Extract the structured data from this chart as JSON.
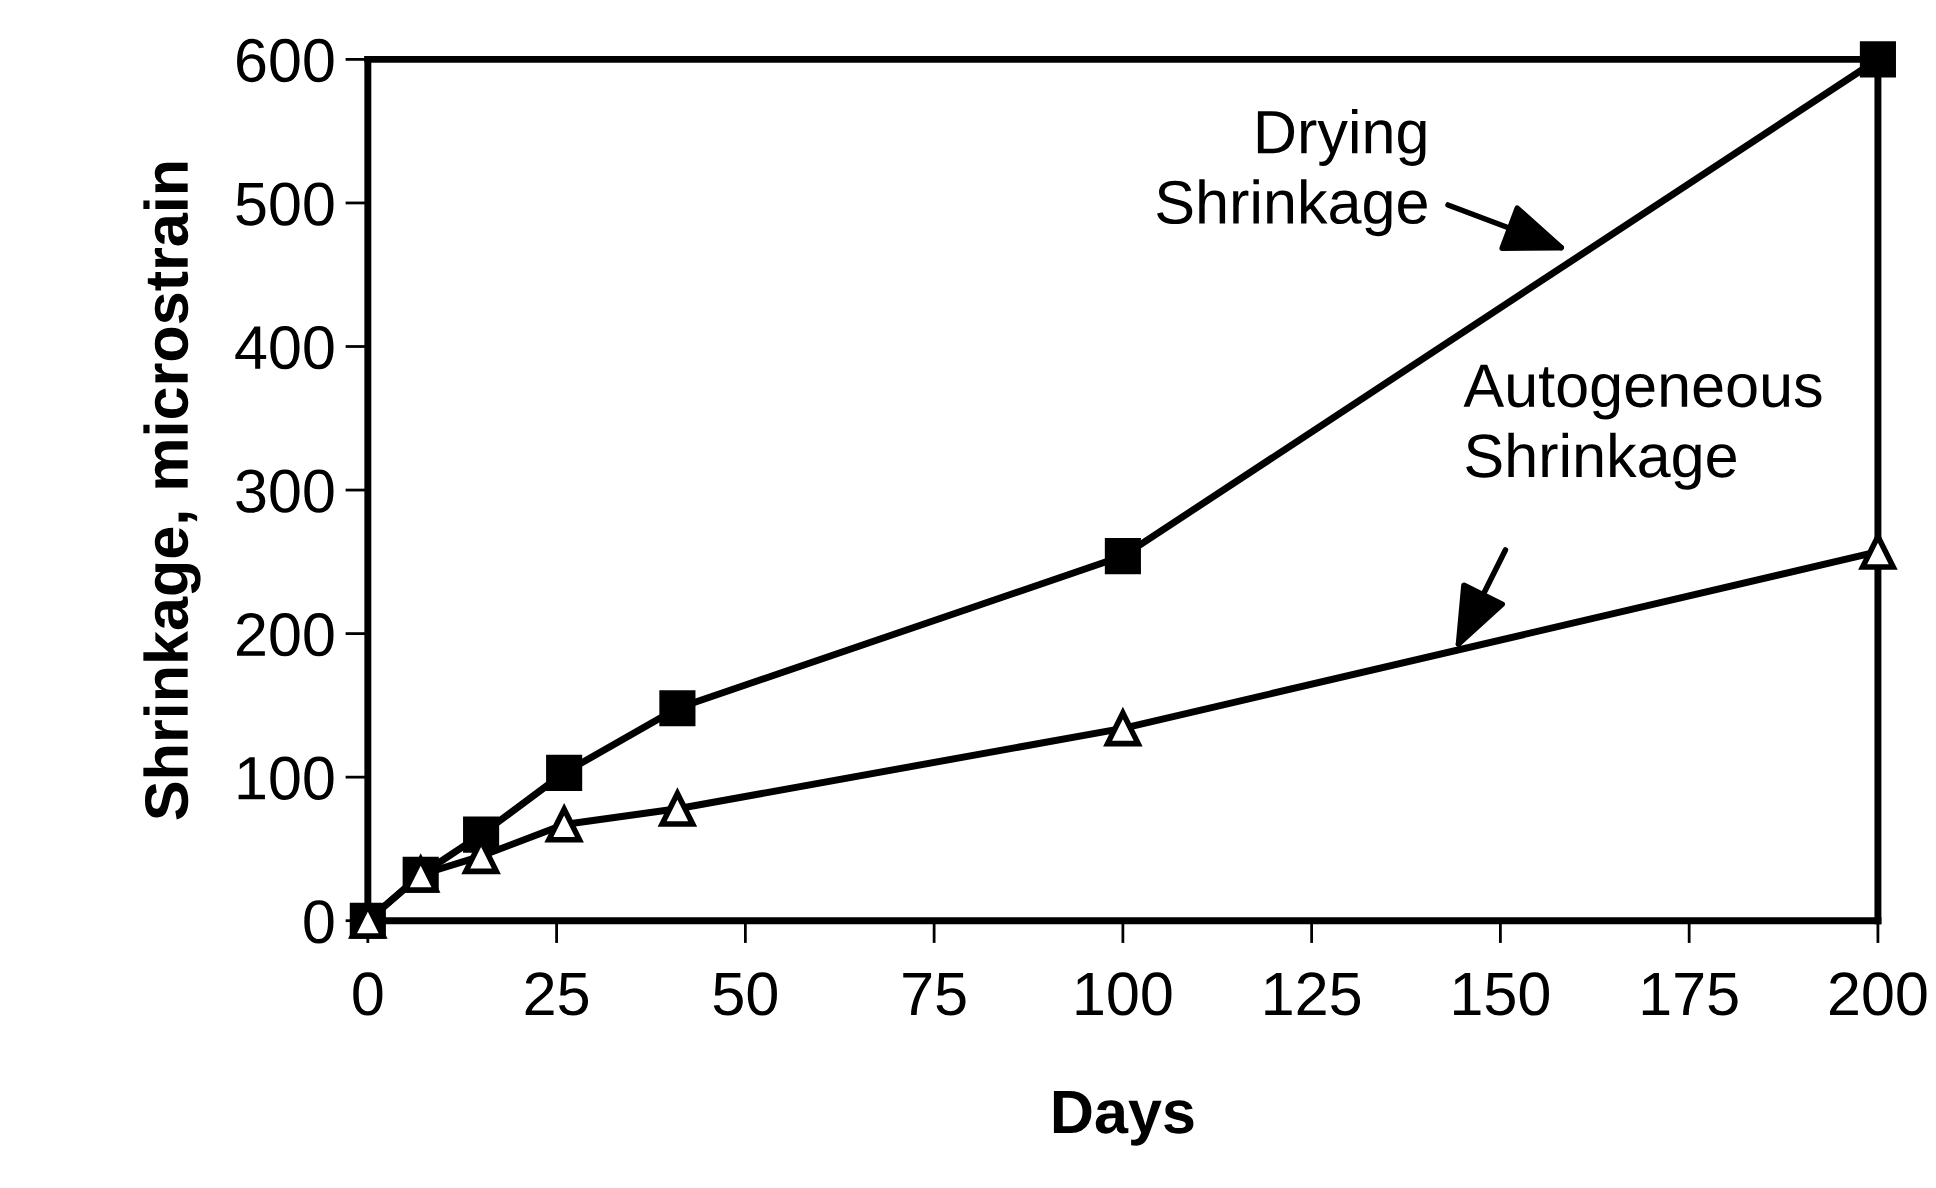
{
  "chart_data": {
    "type": "line",
    "xlabel": "Days",
    "ylabel": "Shrinkage, microstrain",
    "x": [
      0,
      7,
      15,
      26,
      41,
      100,
      200
    ],
    "series": [
      {
        "color": "#000000",
        "marker": "square",
        "values": [
          0,
          32,
          60,
          103,
          148,
          254,
          600
        ]
      },
      {
        "color": "#000000",
        "marker": "triangle",
        "values": [
          0,
          32,
          45,
          67,
          78,
          134,
          257
        ]
      }
    ],
    "xlim": [
      0,
      200
    ],
    "xticks": [
      0,
      25,
      50,
      75,
      100,
      125,
      150,
      175,
      200
    ],
    "ylim": [
      0,
      600
    ],
    "yticks": [
      0,
      100,
      200,
      300,
      400,
      500,
      600
    ],
    "grid": false,
    "legend": false,
    "line_style": "solid",
    "annotations": [
      {
        "text": "Drying\nShrinkage",
        "x": 159,
        "y": 467
      },
      {
        "text": "Autogeneous\nShrinkage",
        "x": 144,
        "y": 188
      }
    ]
  }
}
